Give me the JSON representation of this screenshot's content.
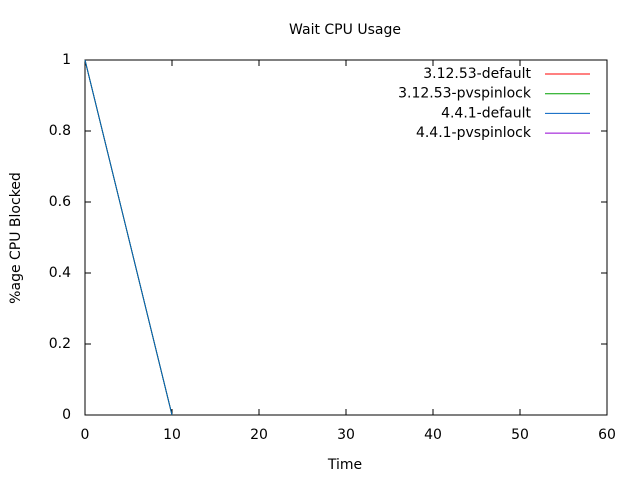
{
  "chart_data": {
    "type": "line",
    "title": "Wait CPU Usage",
    "x_label": "Time",
    "y_label": "%age CPU Blocked",
    "xlim": [
      0,
      60
    ],
    "xticks": [
      0,
      10,
      20,
      30,
      40,
      50,
      60
    ],
    "ylim": [
      0,
      1
    ],
    "yticks": [
      0,
      0.2,
      0.4,
      0.6,
      0.8,
      1
    ],
    "grid": false,
    "legend_position": "top-right",
    "series": [
      {
        "name": "3.12.53-default",
        "color": "#ff0000",
        "x": [
          0,
          10
        ],
        "values": [
          1,
          0
        ]
      },
      {
        "name": "3.12.53-pvspinlock",
        "color": "#00a000",
        "x": [
          0,
          10
        ],
        "values": [
          1,
          0
        ]
      },
      {
        "name": "4.4.1-default",
        "color": "#0060c0",
        "x": [
          0,
          10
        ],
        "values": [
          1,
          0
        ]
      },
      {
        "name": "4.4.1-pvspinlock",
        "color": "#9400d3",
        "x": [],
        "values": []
      }
    ]
  }
}
